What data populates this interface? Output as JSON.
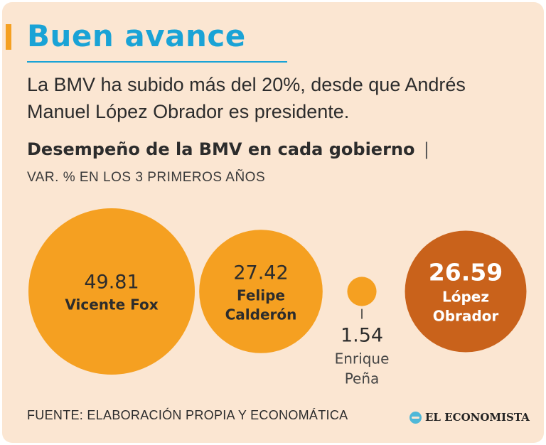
{
  "header": {
    "title": "Buen avance",
    "subtitle": "La BMV ha subido más del 20%, desde que Andrés Manuel López Obrador es presidente."
  },
  "chart_header": {
    "title": "Desempeño de la BMV en cada gobierno",
    "separator": "|",
    "subtitle": "VAR. % EN LOS 3 PRIMEROS AÑOS"
  },
  "footer": {
    "source": "FUENTE: ELABORACIÓN PROPIA Y ECONOMÁTICA",
    "brand": "EL ECONOMISTA"
  },
  "colors": {
    "background": "#fbe6d2",
    "title": "#1aa3d6",
    "bubble": "#f5a021",
    "highlight": "#c9621b",
    "text": "#2c2c2c"
  },
  "chart_data": {
    "type": "bubble",
    "title": "Desempeño de la BMV en cada gobierno",
    "subtitle": "VAR. % EN LOS 3 PRIMEROS AÑOS",
    "categories": [
      "Vicente Fox",
      "Felipe Calderón",
      "Enrique Peña",
      "López Obrador"
    ],
    "values": [
      49.81,
      27.42,
      1.54,
      26.59
    ],
    "value_labels": [
      "49.81",
      "27.42",
      "1.54",
      "26.59"
    ],
    "name_lines": [
      [
        "Vicente Fox"
      ],
      [
        "Felipe",
        "Calderón"
      ],
      [
        "Enrique",
        "Peña"
      ],
      [
        "López",
        "Obrador"
      ]
    ],
    "highlight": "López Obrador"
  }
}
